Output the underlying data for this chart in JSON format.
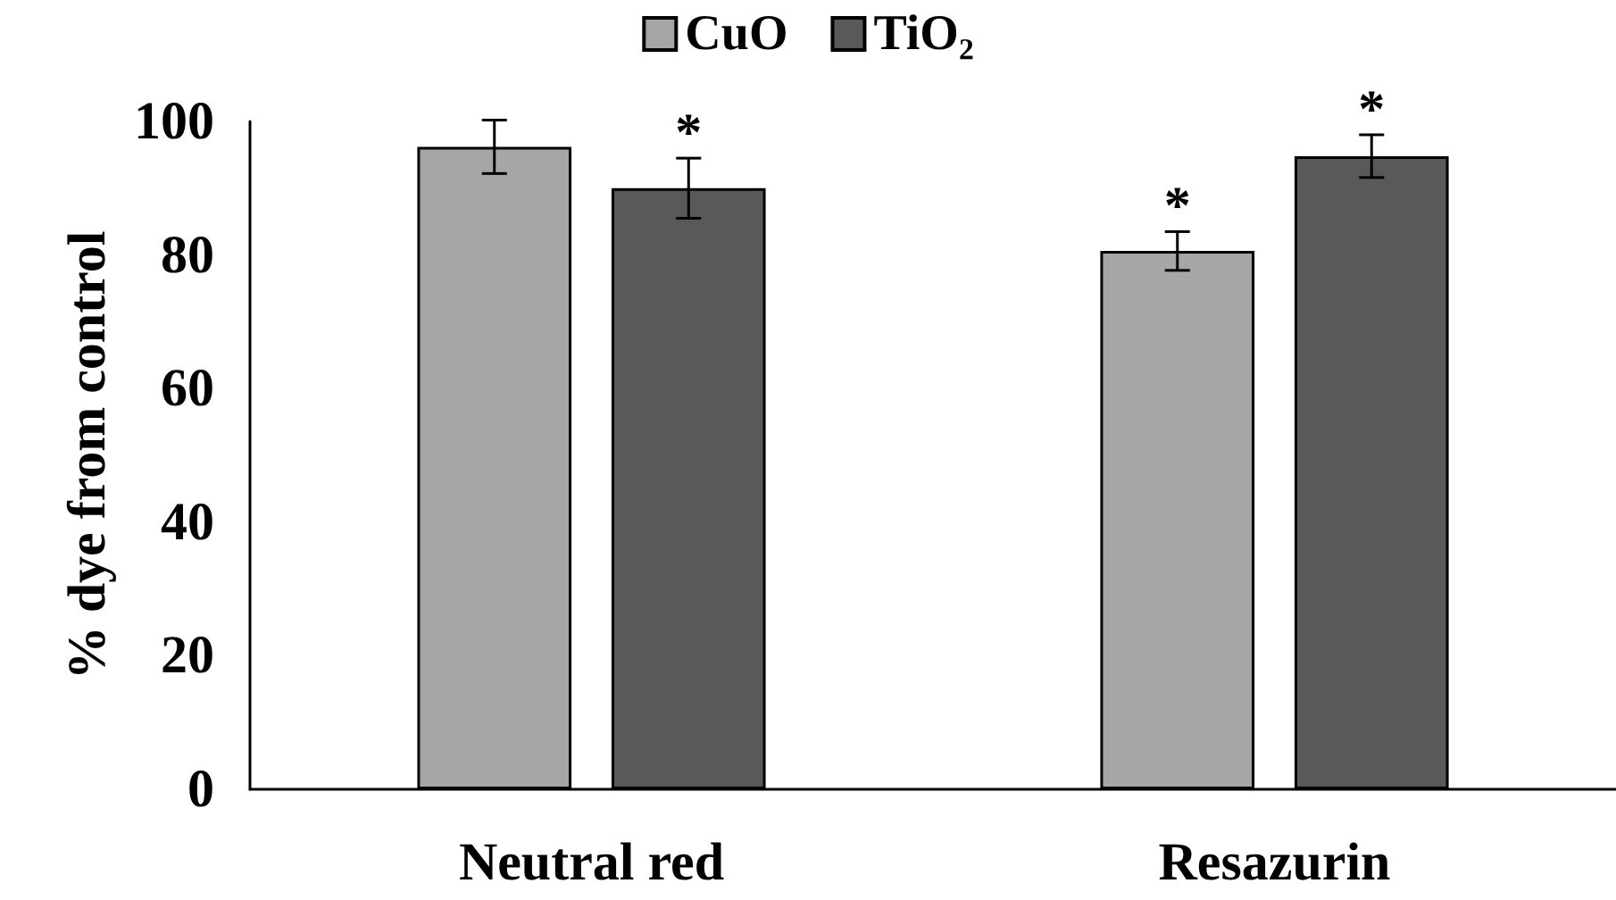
{
  "chart_data": {
    "type": "bar",
    "ylabel": "% dye from control",
    "categories": [
      "Neutral red",
      "Resazurin"
    ],
    "series": [
      {
        "name": "CuO",
        "color": "#a6a6a6",
        "values": [
          96.2,
          80.6
        ],
        "errors": [
          4,
          2.9
        ]
      },
      {
        "name": "TiO₂",
        "color": "#595959",
        "values": [
          90,
          94.8
        ],
        "errors": [
          4.5,
          3.2
        ]
      }
    ],
    "ylim": [
      0,
      100
    ],
    "yticks": [
      0,
      20,
      40,
      60,
      80,
      100
    ],
    "grid": false,
    "legend": "top",
    "annotations": [
      "*",
      "*",
      "*"
    ]
  }
}
